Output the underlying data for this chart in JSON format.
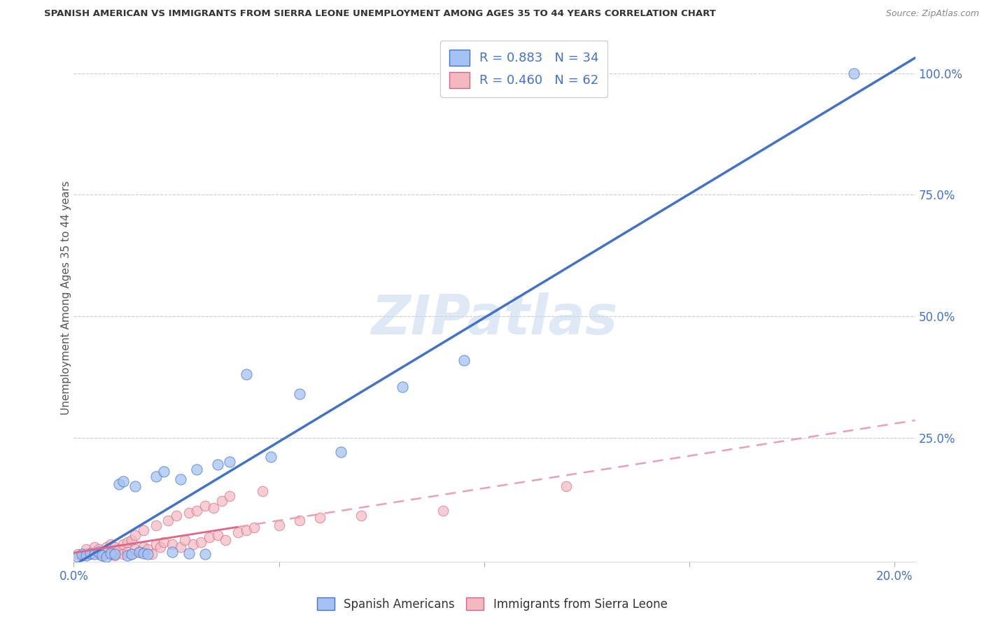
{
  "title": "SPANISH AMERICAN VS IMMIGRANTS FROM SIERRA LEONE UNEMPLOYMENT AMONG AGES 35 TO 44 YEARS CORRELATION CHART",
  "source": "Source: ZipAtlas.com",
  "ylabel": "Unemployment Among Ages 35 to 44 years",
  "xlim": [
    0.0,
    0.205
  ],
  "ylim": [
    -0.005,
    1.08
  ],
  "xticks": [
    0.0,
    0.05,
    0.1,
    0.15,
    0.2
  ],
  "xtick_labels": [
    "0.0%",
    "",
    "",
    "",
    "20.0%"
  ],
  "yticks_right": [
    0.25,
    0.5,
    0.75,
    1.0
  ],
  "ytick_labels_right": [
    "25.0%",
    "50.0%",
    "75.0%",
    "100.0%"
  ],
  "blue_face": "#a4c2f4",
  "blue_edge": "#4472c4",
  "pink_face": "#f4b8c1",
  "pink_edge": "#cc6688",
  "blue_line": "#4472c4",
  "pink_solid_line": "#e06688",
  "pink_dash_line": "#e8a0b4",
  "R_blue": 0.883,
  "N_blue": 34,
  "R_pink": 0.46,
  "N_pink": 62,
  "watermark": "ZIPatlas",
  "grid_color": "#c0c0c0",
  "blue_scatter_x": [
    0.001,
    0.002,
    0.003,
    0.004,
    0.005,
    0.006,
    0.007,
    0.008,
    0.009,
    0.01,
    0.011,
    0.012,
    0.013,
    0.014,
    0.015,
    0.016,
    0.017,
    0.018,
    0.02,
    0.022,
    0.024,
    0.026,
    0.028,
    0.03,
    0.032,
    0.035,
    0.038,
    0.042,
    0.048,
    0.055,
    0.065,
    0.08,
    0.095,
    0.19
  ],
  "blue_scatter_y": [
    0.005,
    0.01,
    0.008,
    0.012,
    0.01,
    0.015,
    0.008,
    0.005,
    0.012,
    0.01,
    0.155,
    0.16,
    0.008,
    0.01,
    0.15,
    0.015,
    0.012,
    0.01,
    0.17,
    0.18,
    0.015,
    0.165,
    0.012,
    0.185,
    0.01,
    0.195,
    0.2,
    0.38,
    0.21,
    0.34,
    0.22,
    0.355,
    0.41,
    1.0
  ],
  "pink_scatter_x": [
    0.001,
    0.002,
    0.003,
    0.003,
    0.004,
    0.005,
    0.005,
    0.006,
    0.006,
    0.007,
    0.007,
    0.008,
    0.008,
    0.009,
    0.009,
    0.01,
    0.01,
    0.01,
    0.011,
    0.012,
    0.012,
    0.013,
    0.013,
    0.014,
    0.014,
    0.015,
    0.015,
    0.016,
    0.017,
    0.017,
    0.018,
    0.019,
    0.02,
    0.02,
    0.021,
    0.022,
    0.023,
    0.024,
    0.025,
    0.026,
    0.027,
    0.028,
    0.029,
    0.03,
    0.031,
    0.032,
    0.033,
    0.034,
    0.035,
    0.036,
    0.037,
    0.038,
    0.04,
    0.042,
    0.044,
    0.046,
    0.05,
    0.055,
    0.06,
    0.07,
    0.09,
    0.12
  ],
  "pink_scatter_y": [
    0.01,
    0.008,
    0.012,
    0.02,
    0.01,
    0.015,
    0.025,
    0.01,
    0.02,
    0.008,
    0.015,
    0.012,
    0.025,
    0.01,
    0.03,
    0.008,
    0.015,
    0.025,
    0.02,
    0.01,
    0.03,
    0.015,
    0.035,
    0.01,
    0.04,
    0.02,
    0.05,
    0.015,
    0.025,
    0.06,
    0.02,
    0.01,
    0.03,
    0.07,
    0.025,
    0.035,
    0.08,
    0.03,
    0.09,
    0.025,
    0.04,
    0.095,
    0.03,
    0.1,
    0.035,
    0.11,
    0.045,
    0.105,
    0.05,
    0.12,
    0.04,
    0.13,
    0.055,
    0.06,
    0.065,
    0.14,
    0.07,
    0.08,
    0.085,
    0.09,
    0.1,
    0.15
  ]
}
